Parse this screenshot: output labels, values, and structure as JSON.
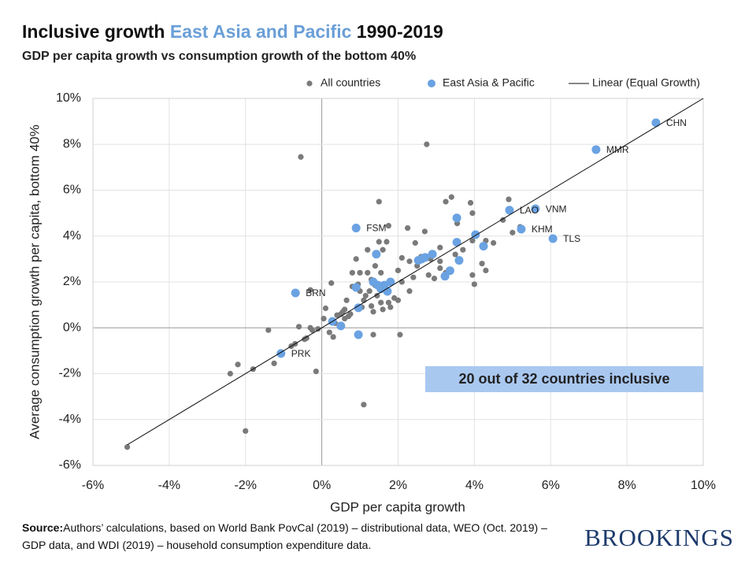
{
  "chart_data": {
    "type": "scatter",
    "title": [
      "Inclusive growth",
      "East Asia and Pacific",
      "1990-2019"
    ],
    "title_colors": [
      "#111111",
      "#6a9fd8",
      "#111111"
    ],
    "subtitle": "GDP per capita growth vs consumption growth of the bottom 40%",
    "x_label": "GDP per capita growth",
    "y_label": "Average consumption growth per capita, bottom 40%",
    "annotation": "20 out of 32 countries inclusive",
    "annotation_color": "#a9c8f0",
    "source_label": "Source:",
    "source_text": "Authors’ calculations, based on World Bank PovCal (2019) – distributional data, WEO (Oct. 2019) – GDP data, and WDI (2019) – household consumption expenditure data.",
    "logo": "BROOKINGS",
    "legend": "top",
    "grid": true,
    "xlim": [
      -6,
      10
    ],
    "ylim": [
      -6,
      10
    ],
    "xticks": [
      {
        "value": -6,
        "label": "-6%"
      },
      {
        "value": -4,
        "label": "-4%"
      },
      {
        "value": -2,
        "label": "-2%"
      },
      {
        "value": 0,
        "label": "0%"
      },
      {
        "value": 2,
        "label": "2%"
      },
      {
        "value": 4,
        "label": "4%"
      },
      {
        "value": 6,
        "label": "6%"
      },
      {
        "value": 8,
        "label": "8%"
      },
      {
        "value": 10,
        "label": "10%"
      }
    ],
    "yticks": [
      {
        "value": -6,
        "label": "-6%"
      },
      {
        "value": -4,
        "label": "-4%"
      },
      {
        "value": -2,
        "label": "-2%"
      },
      {
        "value": 0,
        "label": "0%"
      },
      {
        "value": 2,
        "label": "2%"
      },
      {
        "value": 4,
        "label": "4%"
      },
      {
        "value": 6,
        "label": "6%"
      },
      {
        "value": 8,
        "label": "8%"
      },
      {
        "value": 10,
        "label": "10%"
      }
    ],
    "series": [
      {
        "name": "All countries",
        "color": "#7a7a7a",
        "kind": "points",
        "x": [
          -5.1,
          -2.4,
          -2.2,
          -2.0,
          -1.8,
          -1.4,
          -1.25,
          -0.8,
          -0.7,
          -0.6,
          -0.55,
          -0.45,
          -0.4,
          -0.3,
          -0.25,
          -0.15,
          -0.3,
          -0.1,
          0.05,
          0.1,
          0.2,
          0.3,
          0.25,
          0.35,
          0.4,
          0.5,
          0.55,
          0.6,
          0.65,
          0.7,
          0.75,
          0.8,
          0.8,
          0.9,
          0.95,
          1.0,
          1.05,
          1.1,
          1.15,
          1.1,
          1.2,
          1.2,
          1.25,
          1.3,
          1.3,
          1.35,
          1.35,
          1.4,
          1.45,
          1.5,
          1.5,
          1.55,
          1.55,
          1.6,
          1.6,
          1.65,
          1.7,
          1.75,
          1.75,
          1.8,
          1.9,
          2.0,
          2.0,
          2.05,
          2.1,
          2.1,
          2.25,
          2.3,
          2.4,
          2.45,
          2.5,
          2.6,
          2.7,
          2.75,
          2.8,
          2.85,
          2.95,
          3.1,
          3.1,
          3.25,
          3.4,
          3.5,
          3.55,
          3.7,
          3.9,
          3.95,
          3.95,
          3.95,
          4.0,
          4.2,
          4.3,
          4.3,
          4.5,
          4.75,
          4.9,
          5.0,
          5.2,
          5.6,
          3.1,
          3.25,
          1.0,
          0.6,
          1.4,
          2.3
        ],
        "values": [
          -5.2,
          -2.0,
          -1.6,
          -4.5,
          -1.8,
          -0.1,
          -1.55,
          -0.8,
          -0.7,
          0.05,
          7.45,
          -0.5,
          -0.45,
          0.0,
          -0.1,
          -1.9,
          1.65,
          -0.05,
          0.4,
          0.85,
          -0.2,
          -0.4,
          1.95,
          0.2,
          0.55,
          0.6,
          0.7,
          0.8,
          1.2,
          0.5,
          0.6,
          1.8,
          2.4,
          3.0,
          1.9,
          2.4,
          0.9,
          1.2,
          1.4,
          -3.35,
          3.4,
          2.4,
          1.6,
          0.95,
          2.1,
          -0.3,
          0.7,
          2.7,
          1.4,
          5.5,
          3.75,
          2.4,
          1.1,
          0.8,
          3.4,
          1.9,
          3.75,
          4.45,
          1.1,
          0.9,
          1.3,
          1.2,
          2.5,
          -0.3,
          2.0,
          3.05,
          4.35,
          1.6,
          2.2,
          3.7,
          2.7,
          3.1,
          4.2,
          8.0,
          2.3,
          3.0,
          2.15,
          2.6,
          3.5,
          5.5,
          5.7,
          3.2,
          4.55,
          3.4,
          5.45,
          5.0,
          3.8,
          2.3,
          1.9,
          2.8,
          2.5,
          3.8,
          3.7,
          4.7,
          5.6,
          4.15,
          4.4,
          5.15,
          2.9,
          2.4,
          1.6,
          0.4,
          1.85,
          2.9
        ]
      },
      {
        "name": "East Asia & Pacific",
        "color": "#6aa2e2",
        "kind": "points",
        "x": [
          8.76,
          7.19,
          5.6,
          4.92,
          5.23,
          6.06,
          0.9,
          -0.69,
          -1.07,
          3.54,
          4.03,
          4.24,
          3.54,
          3.6,
          3.36,
          3.23,
          2.9,
          2.71,
          2.53,
          1.43,
          1.35,
          1.8,
          1.64,
          1.47,
          1.72,
          0.9,
          0.96,
          0.5,
          0.28,
          0.96,
          2.62,
          1.55
        ],
        "values": [
          8.94,
          7.77,
          5.19,
          5.13,
          4.3,
          3.89,
          4.35,
          1.52,
          -1.12,
          4.79,
          4.06,
          3.56,
          3.73,
          2.94,
          2.49,
          2.25,
          3.21,
          3.07,
          2.94,
          3.21,
          2.0,
          2.0,
          1.86,
          1.86,
          1.59,
          1.76,
          0.87,
          0.08,
          0.28,
          -0.3,
          3.0,
          1.7
        ],
        "point_labels": [
          "CHN",
          "MMR",
          "VNM",
          "LAO",
          "KHM",
          "TLS",
          "FSM",
          "BRN",
          "PRK",
          null,
          null,
          null,
          null,
          null,
          null,
          null,
          null,
          null,
          null,
          null,
          null,
          null,
          null,
          null,
          null,
          null,
          null,
          null,
          null,
          null,
          null,
          null
        ]
      },
      {
        "name": "Linear (Equal Growth)",
        "color": "#111111",
        "kind": "line",
        "x": [
          -5.1,
          10
        ],
        "values": [
          -5.1,
          10
        ]
      }
    ]
  }
}
